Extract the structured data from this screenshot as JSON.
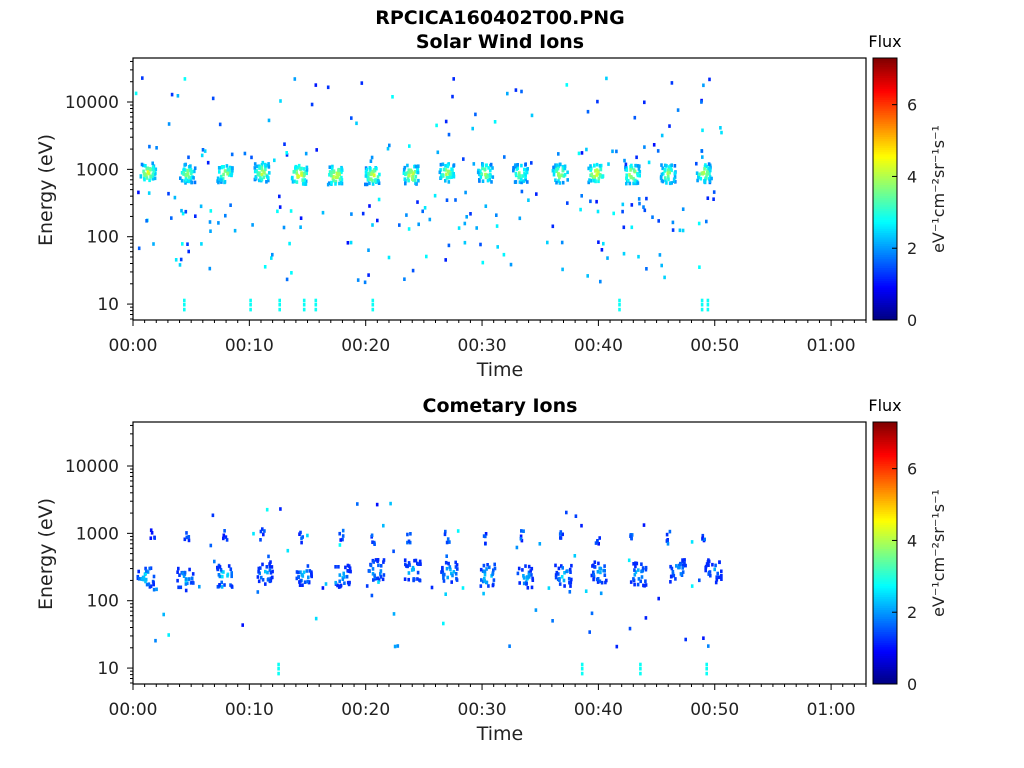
{
  "figure": {
    "title": "RPCICA160402T00.PNG"
  },
  "chart_data": [
    {
      "type": "heatmap",
      "title": "Solar Wind Ions",
      "xlabel": "Time",
      "ylabel": "Energy (eV)",
      "x_ticks": [
        "00:00",
        "00:10",
        "00:20",
        "00:30",
        "00:40",
        "00:50",
        "01:00"
      ],
      "x_tick_values_min": [
        0,
        10,
        20,
        30,
        40,
        50,
        60
      ],
      "xlim_min": [
        0,
        63
      ],
      "y_ticks": [
        "10",
        "100",
        "1000",
        "10000"
      ],
      "y_tick_values": [
        10,
        100,
        1000,
        10000
      ],
      "ylim": [
        5.8,
        45000
      ],
      "yscale": "log",
      "colorbar": {
        "title": "Flux",
        "unit": "eV⁻¹cm⁻²sr⁻¹s⁻¹",
        "ticks": [
          "0",
          "2",
          "4",
          "6"
        ],
        "tick_values": [
          0,
          2,
          4,
          6
        ],
        "range": [
          0,
          7.3
        ],
        "colormap": "jet"
      },
      "clusters": [
        {
          "t_min": 1.2,
          "e_center": 950,
          "peak": 4.5
        },
        {
          "t_min": 4.6,
          "e_center": 920,
          "peak": 4.0
        },
        {
          "t_min": 7.8,
          "e_center": 920,
          "peak": 4.2
        },
        {
          "t_min": 11.0,
          "e_center": 950,
          "peak": 4.4
        },
        {
          "t_min": 14.2,
          "e_center": 880,
          "peak": 4.9
        },
        {
          "t_min": 17.3,
          "e_center": 870,
          "peak": 4.7
        },
        {
          "t_min": 20.5,
          "e_center": 870,
          "peak": 4.5
        },
        {
          "t_min": 23.8,
          "e_center": 880,
          "peak": 4.6
        },
        {
          "t_min": 26.9,
          "e_center": 950,
          "peak": 4.3
        },
        {
          "t_min": 30.2,
          "e_center": 950,
          "peak": 4.2
        },
        {
          "t_min": 33.2,
          "e_center": 930,
          "peak": 4.0
        },
        {
          "t_min": 36.6,
          "e_center": 920,
          "peak": 4.3
        },
        {
          "t_min": 39.7,
          "e_center": 930,
          "peak": 4.8
        },
        {
          "t_min": 42.8,
          "e_center": 900,
          "peak": 4.6
        },
        {
          "t_min": 45.9,
          "e_center": 900,
          "peak": 4.2
        },
        {
          "t_min": 49.0,
          "e_center": 930,
          "peak": 4.3
        }
      ]
    },
    {
      "type": "heatmap",
      "title": "Cometary Ions",
      "xlabel": "Time",
      "ylabel": "Energy (eV)",
      "x_ticks": [
        "00:00",
        "00:10",
        "00:20",
        "00:30",
        "00:40",
        "00:50",
        "01:00"
      ],
      "x_tick_values_min": [
        0,
        10,
        20,
        30,
        40,
        50,
        60
      ],
      "xlim_min": [
        0,
        63
      ],
      "y_ticks": [
        "10",
        "100",
        "1000",
        "10000"
      ],
      "y_tick_values": [
        10,
        100,
        1000,
        10000
      ],
      "ylim": [
        5.8,
        45000
      ],
      "yscale": "log",
      "colorbar": {
        "title": "Flux",
        "unit": "eV⁻¹cm⁻²sr⁻¹s⁻¹",
        "ticks": [
          "0",
          "2",
          "4",
          "6"
        ],
        "tick_values": [
          0,
          2,
          4,
          6
        ],
        "range": [
          0,
          7.3
        ],
        "colormap": "jet"
      },
      "clusters": [
        {
          "t_min": 1.0,
          "e_center": 240,
          "peak": 2.8
        },
        {
          "t_min": 4.4,
          "e_center": 220,
          "peak": 2.6
        },
        {
          "t_min": 7.8,
          "e_center": 250,
          "peak": 3.0
        },
        {
          "t_min": 11.2,
          "e_center": 270,
          "peak": 2.4
        },
        {
          "t_min": 14.6,
          "e_center": 260,
          "peak": 2.5
        },
        {
          "t_min": 17.9,
          "e_center": 250,
          "peak": 2.4
        },
        {
          "t_min": 20.8,
          "e_center": 300,
          "peak": 2.6
        },
        {
          "t_min": 23.9,
          "e_center": 290,
          "peak": 2.5
        },
        {
          "t_min": 27.1,
          "e_center": 280,
          "peak": 2.7
        },
        {
          "t_min": 30.4,
          "e_center": 250,
          "peak": 2.9
        },
        {
          "t_min": 33.6,
          "e_center": 240,
          "peak": 2.5
        },
        {
          "t_min": 36.9,
          "e_center": 250,
          "peak": 2.6
        },
        {
          "t_min": 40.0,
          "e_center": 280,
          "peak": 2.5
        },
        {
          "t_min": 43.4,
          "e_center": 260,
          "peak": 2.6
        },
        {
          "t_min": 46.7,
          "e_center": 300,
          "peak": 2.4
        },
        {
          "t_min": 49.8,
          "e_center": 290,
          "peak": 2.2
        }
      ],
      "upper_clusters": [
        {
          "t_min": 1.6,
          "e_center": 1000
        },
        {
          "t_min": 4.5,
          "e_center": 1000
        },
        {
          "t_min": 7.8,
          "e_center": 1000
        },
        {
          "t_min": 11.0,
          "e_center": 1000
        },
        {
          "t_min": 14.3,
          "e_center": 950
        },
        {
          "t_min": 17.8,
          "e_center": 950
        },
        {
          "t_min": 20.5,
          "e_center": 900
        },
        {
          "t_min": 23.6,
          "e_center": 900
        },
        {
          "t_min": 26.9,
          "e_center": 950
        },
        {
          "t_min": 30.2,
          "e_center": 900
        },
        {
          "t_min": 33.3,
          "e_center": 950
        },
        {
          "t_min": 36.8,
          "e_center": 950
        },
        {
          "t_min": 39.8,
          "e_center": 900
        },
        {
          "t_min": 42.8,
          "e_center": 950
        },
        {
          "t_min": 45.9,
          "e_center": 1000
        },
        {
          "t_min": 49.0,
          "e_center": 900
        }
      ]
    }
  ]
}
